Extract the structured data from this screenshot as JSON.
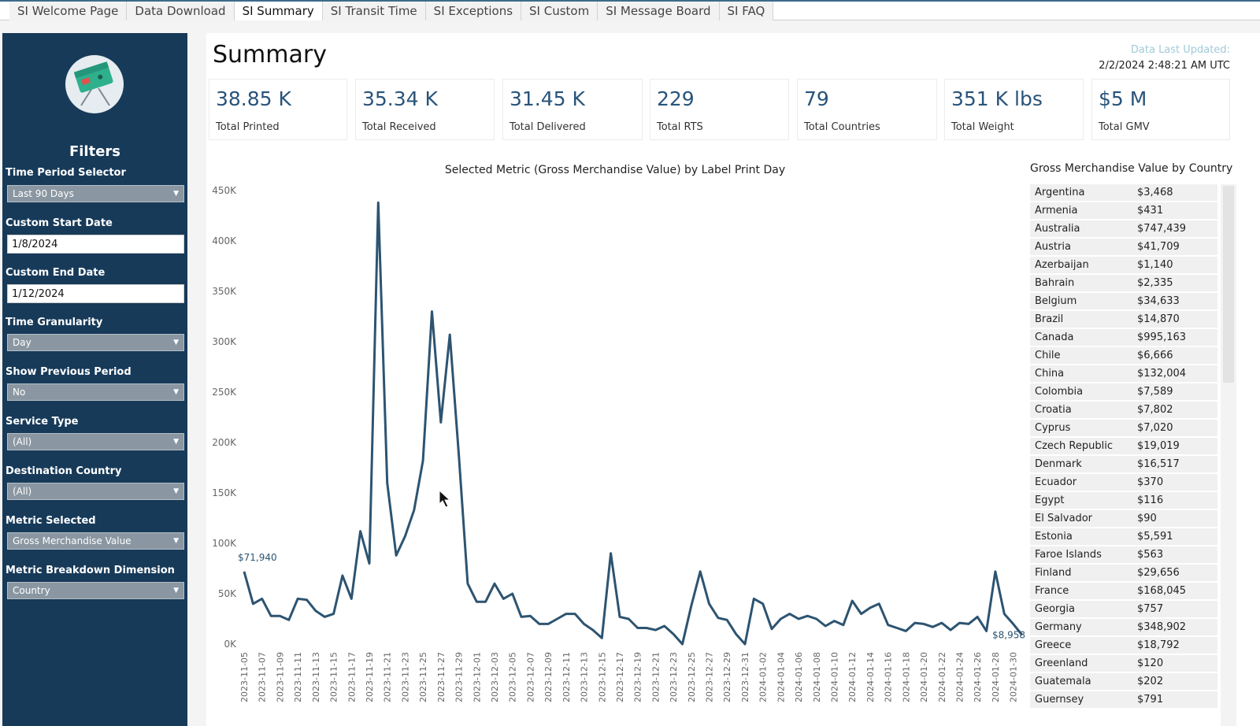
{
  "tabs": [
    {
      "label": "SI Welcome Page"
    },
    {
      "label": "Data Download"
    },
    {
      "label": "SI Summary",
      "active": true
    },
    {
      "label": "SI Transit Time"
    },
    {
      "label": "SI Exceptions"
    },
    {
      "label": "SI Custom"
    },
    {
      "label": "SI Message Board"
    },
    {
      "label": "SI FAQ"
    }
  ],
  "sidebar": {
    "title": "Filters",
    "time_period": {
      "label": "Time Period Selector",
      "value": "Last 90 Days"
    },
    "custom_start": {
      "label": "Custom Start Date",
      "value": "1/8/2024"
    },
    "custom_end": {
      "label": "Custom End Date",
      "value": "1/12/2024"
    },
    "granularity": {
      "label": "Time Granularity",
      "value": "Day"
    },
    "previous_period": {
      "label": "Show Previous Period",
      "value": "No"
    },
    "service_type": {
      "label": "Service Type",
      "value": "(All)"
    },
    "destination": {
      "label": "Destination Country",
      "value": "(All)"
    },
    "metric": {
      "label": "Metric Selected",
      "value": "Gross Merchandise Value"
    },
    "breakdown": {
      "label": "Metric Breakdown Dimension",
      "value": "Country"
    }
  },
  "main": {
    "title": "Summary",
    "updated_label": "Data Last Updated:",
    "updated_value": "2/2/2024 2:48:21 AM UTC"
  },
  "kpis": [
    {
      "value": "38.85 K",
      "label": "Total Printed"
    },
    {
      "value": "35.34 K",
      "label": "Total Received"
    },
    {
      "value": "31.45 K",
      "label": "Total Delivered"
    },
    {
      "value": "229",
      "label": "Total RTS"
    },
    {
      "value": "79",
      "label": "Total Countries"
    },
    {
      "value": "351 K lbs",
      "label": "Total Weight"
    },
    {
      "value": "$5 M",
      "label": "Total GMV"
    }
  ],
  "colors": {
    "sidebar": "#173a59",
    "line": "#2d5471",
    "kpi_value": "#29547a",
    "updated_label": "#9fcbd8"
  },
  "chart_data": {
    "type": "line",
    "title": "Selected Metric (Gross Merchandise Value) by Label Print Day",
    "xlabel": "",
    "ylabel": "",
    "ylim": [
      0,
      450000
    ],
    "y_ticks": [
      "0K",
      "50K",
      "100K",
      "150K",
      "200K",
      "250K",
      "300K",
      "350K",
      "400K",
      "450K"
    ],
    "x_tick_labels": [
      "2023-11-05",
      "2023-11-07",
      "2023-11-09",
      "2023-11-11",
      "2023-11-13",
      "2023-11-15",
      "2023-11-17",
      "2023-11-19",
      "2023-11-21",
      "2023-11-23",
      "2023-11-25",
      "2023-11-27",
      "2023-11-29",
      "2023-12-01",
      "2023-12-03",
      "2023-12-05",
      "2023-12-07",
      "2023-12-09",
      "2023-12-11",
      "2023-12-13",
      "2023-12-15",
      "2023-12-17",
      "2023-12-19",
      "2023-12-21",
      "2023-12-23",
      "2023-12-25",
      "2023-12-27",
      "2023-12-29",
      "2023-12-31",
      "2024-01-02",
      "2024-01-04",
      "2024-01-06",
      "2024-01-08",
      "2024-01-10",
      "2024-01-12",
      "2024-01-14",
      "2024-01-16",
      "2024-01-18",
      "2024-01-20",
      "2024-01-22",
      "2024-01-24",
      "2024-01-26",
      "2024-01-28",
      "2024-01-30"
    ],
    "series": [
      {
        "x_start": "2023-11-05",
        "values": [
          71940,
          40000,
          45000,
          28000,
          28000,
          24000,
          45000,
          44000,
          33000,
          27000,
          30000,
          68000,
          45000,
          112000,
          80000,
          438000,
          160000,
          88000,
          107000,
          133000,
          182000,
          330000,
          220000,
          307000,
          188000,
          60000,
          42000,
          42000,
          60000,
          45000,
          50000,
          27000,
          28000,
          20000,
          20000,
          25000,
          30000,
          30000,
          20000,
          14000,
          6000,
          90000,
          27000,
          25000,
          16000,
          16000,
          14000,
          18000,
          10000,
          0,
          38000,
          72000,
          40000,
          26000,
          24000,
          10000,
          0,
          45000,
          40000,
          15000,
          25000,
          30000,
          25000,
          28000,
          25000,
          18000,
          23000,
          19000,
          43000,
          30000,
          36000,
          40000,
          19000,
          16000,
          13000,
          21000,
          20000,
          17000,
          21000,
          14000,
          21000,
          20000,
          27000,
          13000,
          72000,
          30000,
          20000,
          8958
        ]
      }
    ],
    "annotations": [
      {
        "text": "$71,940",
        "at": "start"
      },
      {
        "text": "$8,958",
        "at": "end"
      }
    ]
  },
  "country_table": {
    "title": "Gross Merchandise Value by Country",
    "rows": [
      {
        "country": "Argentina",
        "value": "$3,468"
      },
      {
        "country": "Armenia",
        "value": "$431"
      },
      {
        "country": "Australia",
        "value": "$747,439"
      },
      {
        "country": "Austria",
        "value": "$41,709"
      },
      {
        "country": "Azerbaijan",
        "value": "$1,140"
      },
      {
        "country": "Bahrain",
        "value": "$2,335"
      },
      {
        "country": "Belgium",
        "value": "$34,633"
      },
      {
        "country": "Brazil",
        "value": "$14,870"
      },
      {
        "country": "Canada",
        "value": "$995,163"
      },
      {
        "country": "Chile",
        "value": "$6,666"
      },
      {
        "country": "China",
        "value": "$132,004"
      },
      {
        "country": "Colombia",
        "value": "$7,589"
      },
      {
        "country": "Croatia",
        "value": "$7,802"
      },
      {
        "country": "Cyprus",
        "value": "$7,020"
      },
      {
        "country": "Czech Republic",
        "value": "$19,019"
      },
      {
        "country": "Denmark",
        "value": "$16,517"
      },
      {
        "country": "Ecuador",
        "value": "$370"
      },
      {
        "country": "Egypt",
        "value": "$116"
      },
      {
        "country": "El Salvador",
        "value": "$90"
      },
      {
        "country": "Estonia",
        "value": "$5,591"
      },
      {
        "country": "Faroe Islands",
        "value": "$563"
      },
      {
        "country": "Finland",
        "value": "$29,656"
      },
      {
        "country": "France",
        "value": "$168,045"
      },
      {
        "country": "Georgia",
        "value": "$757"
      },
      {
        "country": "Germany",
        "value": "$348,902"
      },
      {
        "country": "Greece",
        "value": "$18,792"
      },
      {
        "country": "Greenland",
        "value": "$120"
      },
      {
        "country": "Guatemala",
        "value": "$202"
      },
      {
        "country": "Guernsey",
        "value": "$791"
      }
    ]
  }
}
